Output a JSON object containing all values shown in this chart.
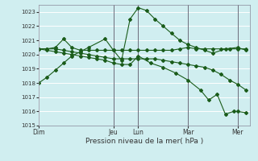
{
  "bg_color": "#d0eef0",
  "grid_color": "#ffffff",
  "line_color": "#1a5c1a",
  "title": "Pression niveau de la mer( hPa )",
  "ylim": [
    1015,
    1023.5
  ],
  "yticks": [
    1015,
    1016,
    1017,
    1018,
    1019,
    1020,
    1021,
    1022,
    1023
  ],
  "vline_positions": [
    3,
    4,
    6,
    8
  ],
  "xtick_positions": [
    0,
    3,
    4,
    6,
    8
  ],
  "xtick_labels": [
    "Dim",
    "Jeu",
    "Lun",
    "Mar",
    "Mer"
  ],
  "xlim": [
    0,
    8.5
  ],
  "lines": [
    {
      "x": [
        0,
        0.33,
        0.67,
        1.0,
        1.33,
        1.67,
        2.0,
        2.67,
        3.0,
        3.33,
        3.67,
        4.0,
        4.33,
        4.67,
        5.0,
        5.33,
        5.67,
        6.0,
        6.33,
        6.67,
        7.0,
        7.5,
        8.0,
        8.33
      ],
      "y": [
        1018.0,
        1018.4,
        1018.9,
        1019.4,
        1019.9,
        1020.2,
        1020.5,
        1021.1,
        1020.3,
        1019.6,
        1022.5,
        1023.3,
        1023.1,
        1022.5,
        1022.0,
        1021.5,
        1021.0,
        1020.7,
        1020.5,
        1020.3,
        1020.1,
        1020.4,
        1020.5,
        1020.3
      ]
    },
    {
      "x": [
        0,
        0.33,
        0.67,
        1.0,
        1.33,
        1.67,
        2.0,
        2.33,
        2.67,
        3.0,
        3.33,
        3.67,
        4.0,
        4.33,
        4.67,
        5.0,
        5.33,
        5.67,
        6.0,
        6.33,
        6.67,
        7.0,
        7.33,
        7.67,
        8.0,
        8.33
      ],
      "y": [
        1020.4,
        1020.4,
        1020.5,
        1021.1,
        1020.5,
        1020.3,
        1020.3,
        1020.3,
        1020.3,
        1020.3,
        1020.3,
        1020.3,
        1020.3,
        1020.3,
        1020.3,
        1020.3,
        1020.3,
        1020.4,
        1020.5,
        1020.4,
        1020.4,
        1020.4,
        1020.4,
        1020.4,
        1020.4,
        1020.4
      ]
    },
    {
      "x": [
        0,
        0.33,
        0.67,
        1.0,
        1.33,
        1.67,
        2.0,
        2.33,
        2.67,
        3.0,
        3.33,
        3.67,
        4.0,
        4.33,
        4.67,
        5.0,
        5.33,
        5.67,
        6.0,
        6.33,
        6.67,
        7.0,
        7.33,
        7.67,
        8.0,
        8.33
      ],
      "y": [
        1020.4,
        1020.4,
        1020.4,
        1020.3,
        1020.2,
        1020.1,
        1020.0,
        1019.9,
        1019.8,
        1019.7,
        1019.7,
        1019.7,
        1019.7,
        1019.7,
        1019.7,
        1019.6,
        1019.5,
        1019.4,
        1019.3,
        1019.2,
        1019.1,
        1018.9,
        1018.6,
        1018.2,
        1017.9,
        1017.5
      ]
    },
    {
      "x": [
        0,
        0.33,
        0.67,
        1.0,
        1.33,
        1.67,
        2.0,
        2.33,
        2.67,
        3.0,
        3.33,
        3.67,
        4.0,
        4.5,
        5.0,
        5.5,
        6.0,
        6.5,
        6.83,
        7.17,
        7.5,
        7.83,
        8.0,
        8.33
      ],
      "y": [
        1020.4,
        1020.3,
        1020.2,
        1020.1,
        1020.0,
        1019.9,
        1019.8,
        1019.7,
        1019.6,
        1019.4,
        1019.3,
        1019.3,
        1019.9,
        1019.4,
        1019.1,
        1018.7,
        1018.2,
        1017.5,
        1016.8,
        1017.2,
        1015.8,
        1016.0,
        1016.0,
        1015.9
      ]
    }
  ]
}
